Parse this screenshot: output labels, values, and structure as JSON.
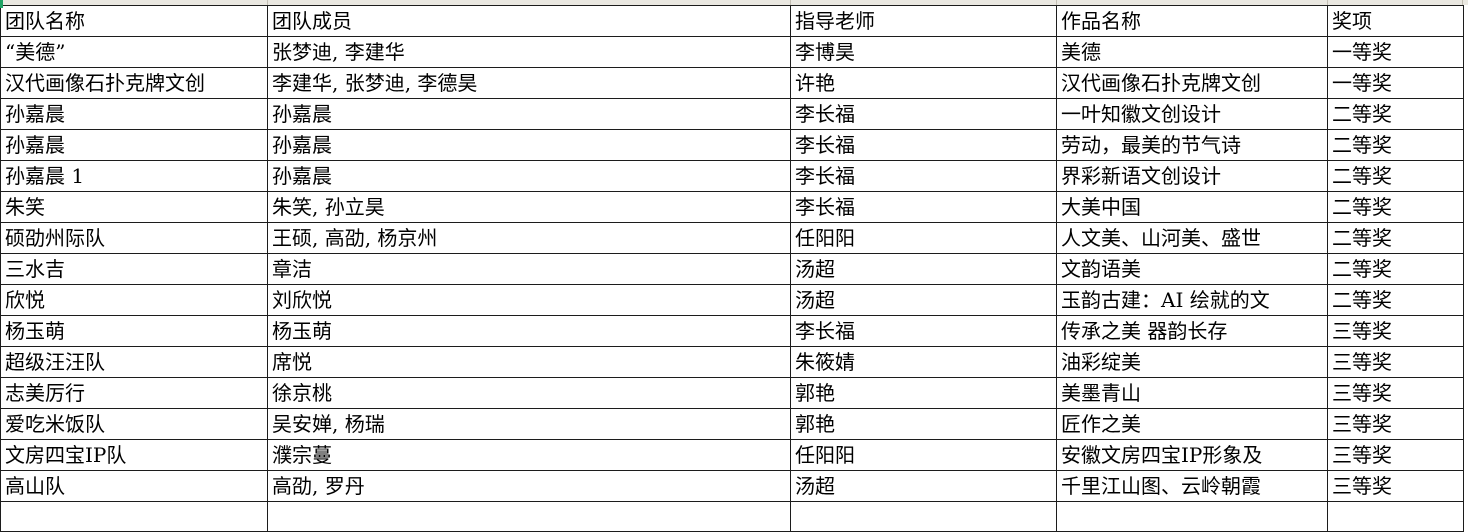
{
  "colors": {
    "background": "#ffffff",
    "grid_border": "#1c1c1c",
    "strip_background": "#eae8e1",
    "corner_accent_green": "#21a366",
    "text": "#000000"
  },
  "table": {
    "columns": [
      {
        "key": "team",
        "label": "团队名称"
      },
      {
        "key": "members",
        "label": "团队成员"
      },
      {
        "key": "teacher",
        "label": "指导老师"
      },
      {
        "key": "work",
        "label": "作品名称"
      },
      {
        "key": "award",
        "label": "奖项"
      }
    ],
    "rows": [
      {
        "team": "“美德”",
        "members": "张梦迪, 李建华",
        "teacher": "李博昊",
        "work": "美德",
        "award": "一等奖"
      },
      {
        "team": "汉代画像石扑克牌文创",
        "members": "李建华, 张梦迪, 李德昊",
        "teacher": "许艳",
        "work": "汉代画像石扑克牌文创",
        "award": "一等奖"
      },
      {
        "team": "孙嘉晨",
        "members": "孙嘉晨",
        "teacher": "李长福",
        "work": "一叶知徽文创设计",
        "award": "二等奖"
      },
      {
        "team": "孙嘉晨",
        "members": "孙嘉晨",
        "teacher": "李长福",
        "work": "劳动，最美的节气诗",
        "award": "二等奖"
      },
      {
        "team": "孙嘉晨 1",
        "members": "孙嘉晨",
        "teacher": "李长福",
        "work": "界彩新语文创设计",
        "award": "二等奖"
      },
      {
        "team": "朱笑",
        "members": "朱笑, 孙立昊",
        "teacher": "李长福",
        "work": "大美中国",
        "award": "二等奖"
      },
      {
        "team": "硕劭州际队",
        "members": "王硕, 高劭, 杨京州",
        "teacher": "任阳阳",
        "work": "人文美、山河美、盛世",
        "award": "二等奖"
      },
      {
        "team": "三水吉",
        "members": "章洁",
        "teacher": "汤超",
        "work": "文韵语美",
        "award": "二等奖"
      },
      {
        "team": "欣悦",
        "members": "刘欣悦",
        "teacher": "汤超",
        "work": "玉韵古建：AI 绘就的文",
        "award": "二等奖"
      },
      {
        "team": "杨玉萌",
        "members": "杨玉萌",
        "teacher": "李长福",
        "work": "传承之美 器韵长存",
        "award": "三等奖"
      },
      {
        "team": "超级汪汪队",
        "members": "席悦",
        "teacher": "朱筱婧",
        "work": "油彩绽美",
        "award": "三等奖"
      },
      {
        "team": "志美厉行",
        "members": "徐京桃",
        "teacher": "郭艳",
        "work": "美墨青山",
        "award": "三等奖"
      },
      {
        "team": "爱吃米饭队",
        "members": "吴安婵, 杨瑞",
        "teacher": "郭艳",
        "work": "匠作之美",
        "award": "三等奖"
      },
      {
        "team": "文房四宝IP队",
        "members": "濮宗蔓",
        "teacher": "任阳阳",
        "work": "安徽文房四宝IP形象及",
        "award": "三等奖"
      },
      {
        "team": "高山队",
        "members": "高劭, 罗丹",
        "teacher": "汤超",
        "work": "千里江山图、云岭朝霞",
        "award": "三等奖"
      }
    ]
  }
}
